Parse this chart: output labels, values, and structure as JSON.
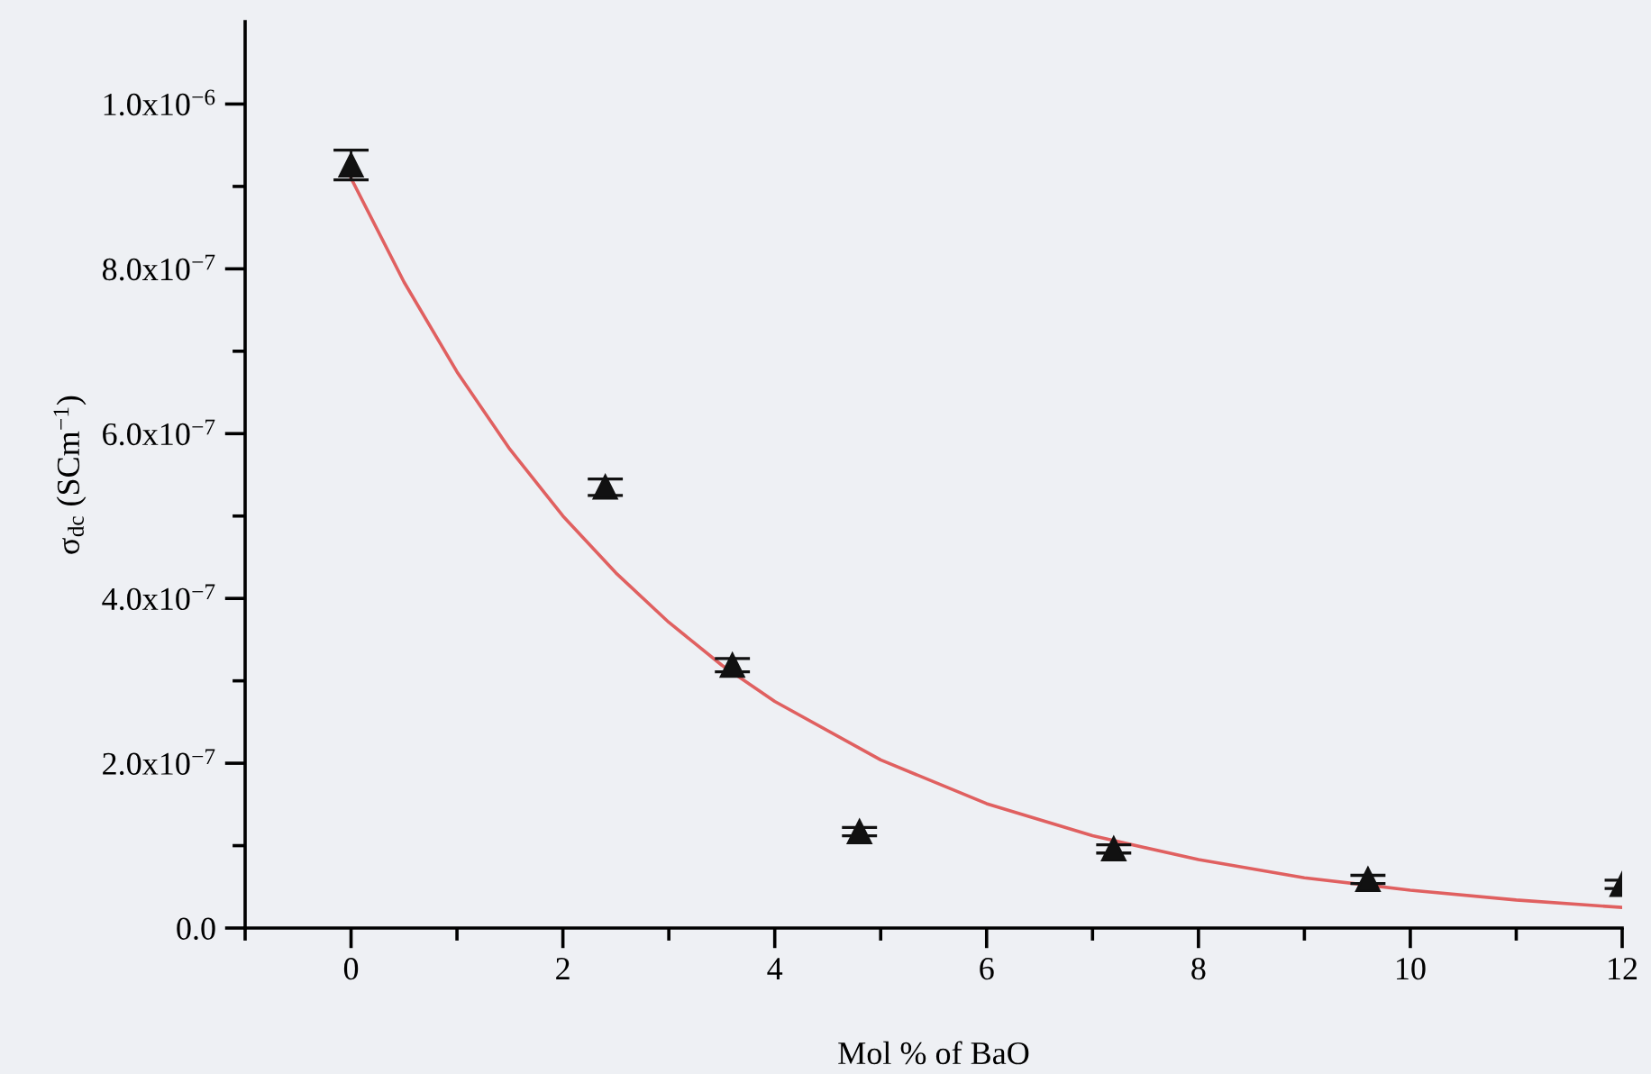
{
  "chart_data": {
    "type": "scatter",
    "xlabel": "Mol % of BaO",
    "ylabel": "σ$_{dc}$ (SCm$^{−1}$)",
    "x": [
      0,
      2.4,
      3.6,
      4.8,
      7.2,
      9.6,
      12
    ],
    "series": [
      {
        "color": "#111111",
        "marker": "triangle",
        "values": [
          9.26e-07,
          5.35e-07,
          3.19e-07,
          1.17e-07,
          9.6e-08,
          5.9e-08,
          5.3e-08
        ],
        "errors": [
          1.8e-08,
          1e-08,
          8e-09,
          5e-09,
          5e-09,
          5e-09,
          5e-09
        ]
      },
      {
        "type": "line",
        "color": "#e06060",
        "marker": "none",
        "line_style": "solid",
        "x": [
          0,
          0.5,
          1,
          1.5,
          2,
          2.5,
          3,
          3.5,
          4,
          5,
          6,
          7,
          8,
          9,
          10,
          11,
          12
        ],
        "values": [
          9.1e-07,
          7.84e-07,
          6.75e-07,
          5.81e-07,
          5e-07,
          4.31e-07,
          3.71e-07,
          3.19e-07,
          2.75e-07,
          2.04e-07,
          1.51e-07,
          1.12e-07,
          8.3e-08,
          6.1e-08,
          4.6e-08,
          3.4e-08,
          2.5e-08
        ]
      }
    ],
    "xlim": [
      -1,
      12
    ],
    "xticks": [
      {
        "value": -1,
        "label": null
      },
      0,
      {
        "value": 1,
        "label": null
      },
      2,
      {
        "value": 3,
        "label": null
      },
      4,
      {
        "value": 5,
        "label": null
      },
      6,
      {
        "value": 7,
        "label": null
      },
      8,
      {
        "value": 9,
        "label": null
      },
      10,
      {
        "value": 11,
        "label": null
      },
      12
    ],
    "ylim": [
      0,
      1.1e-06
    ],
    "yticks": [
      {
        "value": 0,
        "label": "0.0"
      },
      {
        "value": 1e-07,
        "label": null
      },
      {
        "value": 2e-07,
        "label": "2.0x10$^{−7}$"
      },
      {
        "value": 3e-07,
        "label": null
      },
      {
        "value": 4e-07,
        "label": "4.0x10$^{−7}$"
      },
      {
        "value": 5e-07,
        "label": null
      },
      {
        "value": 6e-07,
        "label": "6.0x10$^{−7}$"
      },
      {
        "value": 7e-07,
        "label": null
      },
      {
        "value": 8e-07,
        "label": "8.0x10$^{−7}$"
      },
      {
        "value": 9e-07,
        "label": null
      },
      {
        "value": 1e-06,
        "label": "1.0x10$^{−6}$"
      }
    ],
    "grid": false,
    "legend": false
  }
}
